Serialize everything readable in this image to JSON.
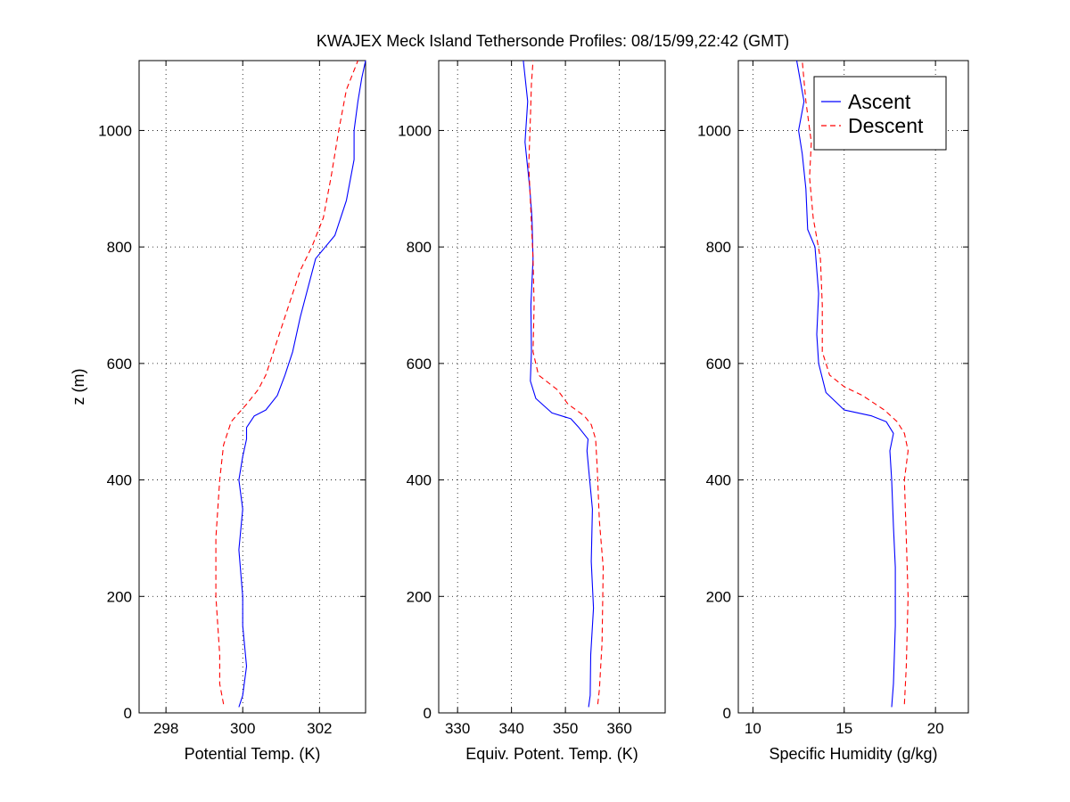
{
  "title": "KWAJEX Meck Island Tethersonde Profiles: 08/15/99,22:42 (GMT)",
  "colors": {
    "ascent": "#0000ff",
    "descent": "#ff0000",
    "axes": "#000000",
    "grid": "#000000"
  },
  "legend": {
    "position": "top-right of third panel",
    "entries": [
      {
        "label": "Ascent",
        "style": "solid",
        "color": "#0000ff"
      },
      {
        "label": "Descent",
        "style": "dashed",
        "color": "#ff0000"
      }
    ]
  },
  "chart_data": [
    {
      "type": "line",
      "xlabel": "Potential Temp. (K)",
      "ylabel": "z (m)",
      "xlim": [
        297.3,
        303.2
      ],
      "ylim": [
        0,
        1120
      ],
      "xticks": [
        298,
        300,
        302
      ],
      "yticks": [
        0,
        200,
        400,
        600,
        800,
        1000
      ],
      "grid": true,
      "series": [
        {
          "name": "Ascent",
          "points": [
            [
              299.9,
              10
            ],
            [
              300.0,
              30
            ],
            [
              300.1,
              80
            ],
            [
              300.0,
              150
            ],
            [
              300.0,
              200
            ],
            [
              299.9,
              280
            ],
            [
              300.0,
              350
            ],
            [
              299.9,
              400
            ],
            [
              300.0,
              440
            ],
            [
              300.1,
              470
            ],
            [
              300.1,
              490
            ],
            [
              300.3,
              510
            ],
            [
              300.6,
              520
            ],
            [
              300.9,
              545
            ],
            [
              301.1,
              580
            ],
            [
              301.3,
              620
            ],
            [
              301.5,
              680
            ],
            [
              301.7,
              730
            ],
            [
              301.9,
              780
            ],
            [
              302.4,
              820
            ],
            [
              302.7,
              880
            ],
            [
              302.9,
              950
            ],
            [
              302.9,
              1000
            ],
            [
              303.0,
              1050
            ],
            [
              303.1,
              1090
            ],
            [
              303.2,
              1120
            ]
          ]
        },
        {
          "name": "Descent",
          "points": [
            [
              299.5,
              15
            ],
            [
              299.4,
              50
            ],
            [
              299.4,
              100
            ],
            [
              299.3,
              200
            ],
            [
              299.3,
              300
            ],
            [
              299.4,
              400
            ],
            [
              299.5,
              460
            ],
            [
              299.7,
              500
            ],
            [
              300.1,
              530
            ],
            [
              300.4,
              555
            ],
            [
              300.6,
              580
            ],
            [
              300.9,
              640
            ],
            [
              301.2,
              700
            ],
            [
              301.5,
              760
            ],
            [
              301.8,
              800
            ],
            [
              302.1,
              850
            ],
            [
              302.3,
              920
            ],
            [
              302.5,
              1000
            ],
            [
              302.7,
              1070
            ],
            [
              303.0,
              1120
            ]
          ]
        }
      ]
    },
    {
      "type": "line",
      "xlabel": "Equiv. Potent. Temp. (K)",
      "ylabel": "",
      "xlim": [
        326.5,
        368.5
      ],
      "ylim": [
        0,
        1120
      ],
      "xticks": [
        330,
        340,
        350,
        360
      ],
      "yticks": [
        0,
        200,
        400,
        600,
        800,
        1000
      ],
      "grid": true,
      "series": [
        {
          "name": "Ascent",
          "points": [
            [
              354.3,
              10
            ],
            [
              354.6,
              30
            ],
            [
              354.7,
              100
            ],
            [
              355.2,
              180
            ],
            [
              354.8,
              260
            ],
            [
              355.0,
              350
            ],
            [
              354.4,
              410
            ],
            [
              354.0,
              450
            ],
            [
              354.2,
              470
            ],
            [
              352.5,
              490
            ],
            [
              351.0,
              505
            ],
            [
              347.5,
              515
            ],
            [
              344.5,
              540
            ],
            [
              343.5,
              570
            ],
            [
              343.7,
              620
            ],
            [
              343.6,
              700
            ],
            [
              344.0,
              780
            ],
            [
              343.8,
              850
            ],
            [
              343.4,
              900
            ],
            [
              342.5,
              980
            ],
            [
              343.0,
              1050
            ],
            [
              342.2,
              1120
            ]
          ]
        },
        {
          "name": "Descent",
          "points": [
            [
              356.0,
              15
            ],
            [
              356.3,
              40
            ],
            [
              356.8,
              120
            ],
            [
              357.0,
              250
            ],
            [
              356.3,
              330
            ],
            [
              355.9,
              420
            ],
            [
              355.6,
              470
            ],
            [
              354.8,
              495
            ],
            [
              353.5,
              510
            ],
            [
              350.5,
              530
            ],
            [
              348.5,
              555
            ],
            [
              345.0,
              580
            ],
            [
              344.0,
              620
            ],
            [
              344.2,
              700
            ],
            [
              344.0,
              780
            ],
            [
              343.6,
              860
            ],
            [
              343.2,
              940
            ],
            [
              343.5,
              1020
            ],
            [
              343.7,
              1080
            ],
            [
              344.0,
              1120
            ]
          ]
        }
      ]
    },
    {
      "type": "line",
      "xlabel": "Specific Humidity (g/kg)",
      "ylabel": "",
      "xlim": [
        9.2,
        21.8
      ],
      "ylim": [
        0,
        1120
      ],
      "xticks": [
        10,
        15,
        20
      ],
      "yticks": [
        0,
        200,
        400,
        600,
        800,
        1000
      ],
      "grid": true,
      "series": [
        {
          "name": "Ascent",
          "points": [
            [
              17.6,
              10
            ],
            [
              17.7,
              50
            ],
            [
              17.8,
              150
            ],
            [
              17.8,
              250
            ],
            [
              17.7,
              320
            ],
            [
              17.6,
              400
            ],
            [
              17.5,
              450
            ],
            [
              17.7,
              480
            ],
            [
              17.3,
              500
            ],
            [
              16.5,
              510
            ],
            [
              15.0,
              520
            ],
            [
              14.0,
              550
            ],
            [
              13.6,
              600
            ],
            [
              13.5,
              650
            ],
            [
              13.6,
              720
            ],
            [
              13.4,
              800
            ],
            [
              13.0,
              830
            ],
            [
              12.9,
              900
            ],
            [
              12.7,
              960
            ],
            [
              12.5,
              1000
            ],
            [
              12.8,
              1050
            ],
            [
              12.4,
              1120
            ]
          ]
        },
        {
          "name": "Descent",
          "points": [
            [
              18.3,
              15
            ],
            [
              18.4,
              80
            ],
            [
              18.5,
              200
            ],
            [
              18.4,
              300
            ],
            [
              18.3,
              400
            ],
            [
              18.5,
              450
            ],
            [
              18.3,
              480
            ],
            [
              17.9,
              500
            ],
            [
              17.2,
              520
            ],
            [
              16.0,
              545
            ],
            [
              15.0,
              560
            ],
            [
              14.2,
              580
            ],
            [
              13.8,
              620
            ],
            [
              13.8,
              700
            ],
            [
              13.7,
              780
            ],
            [
              13.3,
              850
            ],
            [
              13.1,
              920
            ],
            [
              13.2,
              980
            ],
            [
              12.9,
              1050
            ],
            [
              12.7,
              1120
            ]
          ]
        }
      ]
    }
  ]
}
